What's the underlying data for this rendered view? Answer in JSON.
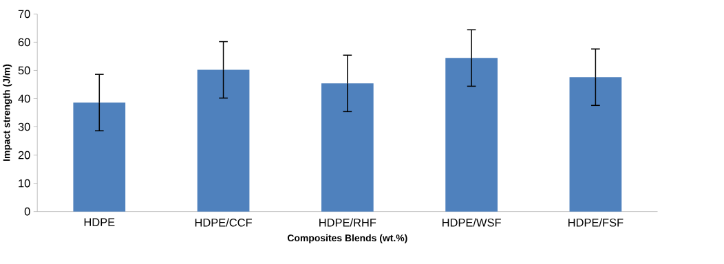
{
  "chart_data": {
    "type": "bar",
    "xlabel": "Composites Blends (wt.%)",
    "ylabel": "Impact strength (J/m)",
    "categories": [
      "HDPE",
      "HDPE/CCF",
      "HDPE/RHF",
      "HDPE/WSF",
      "HDPE/FSF"
    ],
    "values": [
      38.6,
      50.2,
      45.4,
      54.4,
      47.6
    ],
    "errors": [
      10,
      10,
      10,
      10,
      10
    ],
    "color": "#4f81bd",
    "ylim": [
      0,
      70
    ],
    "yticks": [
      0,
      10,
      20,
      30,
      40,
      50,
      60,
      70
    ]
  }
}
